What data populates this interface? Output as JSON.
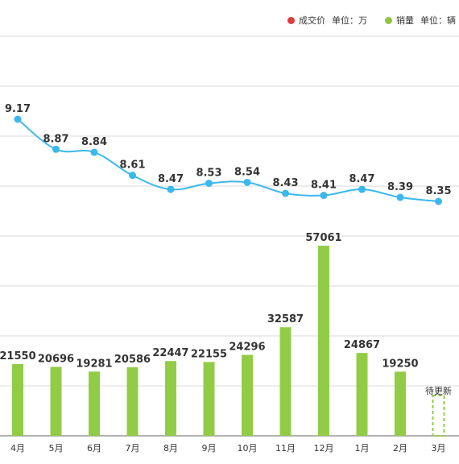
{
  "legend": {
    "price": {
      "label": "成交价",
      "unit": "单位：万",
      "color": "#e03c3c"
    },
    "sales": {
      "label": "销量",
      "unit": "单位：辆",
      "color": "#8cc63f"
    }
  },
  "chart_data": {
    "type": "bar",
    "categories": [
      "4月",
      "5月",
      "6月",
      "7月",
      "8月",
      "9月",
      "10月",
      "11月",
      "12月",
      "1月",
      "2月",
      "3月"
    ],
    "series": [
      {
        "name": "成交价",
        "kind": "line",
        "color": "#3bb8ec",
        "values": [
          9.17,
          8.87,
          8.84,
          8.61,
          8.47,
          8.53,
          8.54,
          8.43,
          8.41,
          8.47,
          8.39,
          8.35
        ]
      },
      {
        "name": "销量",
        "kind": "bar",
        "color": "#92cc47",
        "values": [
          21550,
          20696,
          19281,
          20586,
          22447,
          22155,
          24296,
          32587,
          57061,
          24867,
          19250,
          null
        ]
      }
    ],
    "pending": {
      "category": "3月",
      "label": "待更新"
    },
    "grid": true,
    "legend_position": "top-right"
  }
}
